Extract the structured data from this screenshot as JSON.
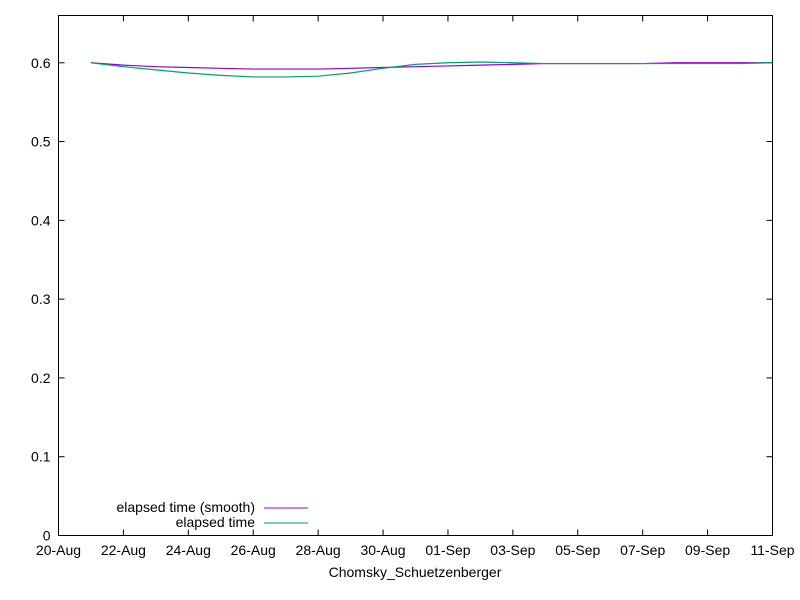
{
  "chart_data": {
    "type": "line",
    "xlabel": "Chomsky_Schuetzenberger",
    "ylabel": "",
    "x_ticks": [
      "20-Aug",
      "22-Aug",
      "24-Aug",
      "26-Aug",
      "28-Aug",
      "30-Aug",
      "01-Sep",
      "03-Sep",
      "05-Sep",
      "07-Sep",
      "09-Sep",
      "11-Sep"
    ],
    "y_ticks": [
      "0",
      "0.1",
      "0.2",
      "0.3",
      "0.4",
      "0.5",
      "0.6"
    ],
    "xlim": [
      "20-Aug",
      "11-Sep"
    ],
    "ylim": [
      0,
      0.66
    ],
    "grid": false,
    "legend_position": "bottom-left",
    "series": [
      {
        "name": "elapsed time (smooth)",
        "color": "#9400d3",
        "x": [
          "21-Aug",
          "22-Aug",
          "23-Aug",
          "24-Aug",
          "25-Aug",
          "26-Aug",
          "27-Aug",
          "28-Aug",
          "29-Aug",
          "30-Aug",
          "31-Aug",
          "01-Sep",
          "02-Sep",
          "03-Sep",
          "04-Sep",
          "05-Sep",
          "06-Sep",
          "07-Sep",
          "08-Sep",
          "09-Sep",
          "10-Sep",
          "11-Sep"
        ],
        "y": [
          0.6,
          0.597,
          0.595,
          0.594,
          0.593,
          0.592,
          0.592,
          0.592,
          0.593,
          0.594,
          0.595,
          0.596,
          0.597,
          0.598,
          0.599,
          0.599,
          0.599,
          0.599,
          0.6,
          0.6,
          0.6,
          0.6
        ]
      },
      {
        "name": "elapsed time",
        "color": "#009e73",
        "x": [
          "21-Aug",
          "22-Aug",
          "23-Aug",
          "24-Aug",
          "25-Aug",
          "26-Aug",
          "27-Aug",
          "28-Aug",
          "29-Aug",
          "30-Aug",
          "31-Aug",
          "01-Sep",
          "02-Sep",
          "03-Sep",
          "04-Sep",
          "05-Sep",
          "06-Sep",
          "07-Sep",
          "08-Sep",
          "09-Sep",
          "10-Sep",
          "11-Sep"
        ],
        "y": [
          0.6,
          0.595,
          0.591,
          0.587,
          0.584,
          0.582,
          0.582,
          0.583,
          0.587,
          0.593,
          0.598,
          0.6,
          0.601,
          0.6,
          0.599,
          0.599,
          0.599,
          0.599,
          0.599,
          0.599,
          0.599,
          0.6
        ]
      }
    ]
  }
}
